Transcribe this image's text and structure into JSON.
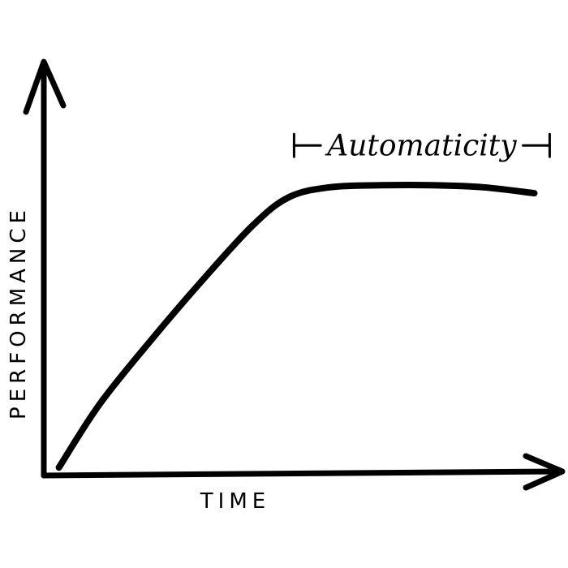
{
  "chart_data": {
    "type": "line",
    "title": "",
    "xlabel": "TIME",
    "ylabel": "PERFORMANCE",
    "xlim": [
      0,
      100
    ],
    "ylim": [
      0,
      100
    ],
    "grid": false,
    "series": [
      {
        "values": [
          {
            "x": 2,
            "y": 2
          },
          {
            "x": 10,
            "y": 18
          },
          {
            "x": 20,
            "y": 34
          },
          {
            "x": 30,
            "y": 49
          },
          {
            "x": 40,
            "y": 63
          },
          {
            "x": 47,
            "y": 70
          },
          {
            "x": 55,
            "y": 72.5
          },
          {
            "x": 65,
            "y": 73
          },
          {
            "x": 75,
            "y": 73
          },
          {
            "x": 85,
            "y": 72.5
          },
          {
            "x": 95,
            "y": 71
          }
        ]
      }
    ],
    "annotations": [
      {
        "text": "Automaticity",
        "x_start": 48,
        "x_end": 98,
        "y": 83
      }
    ]
  }
}
